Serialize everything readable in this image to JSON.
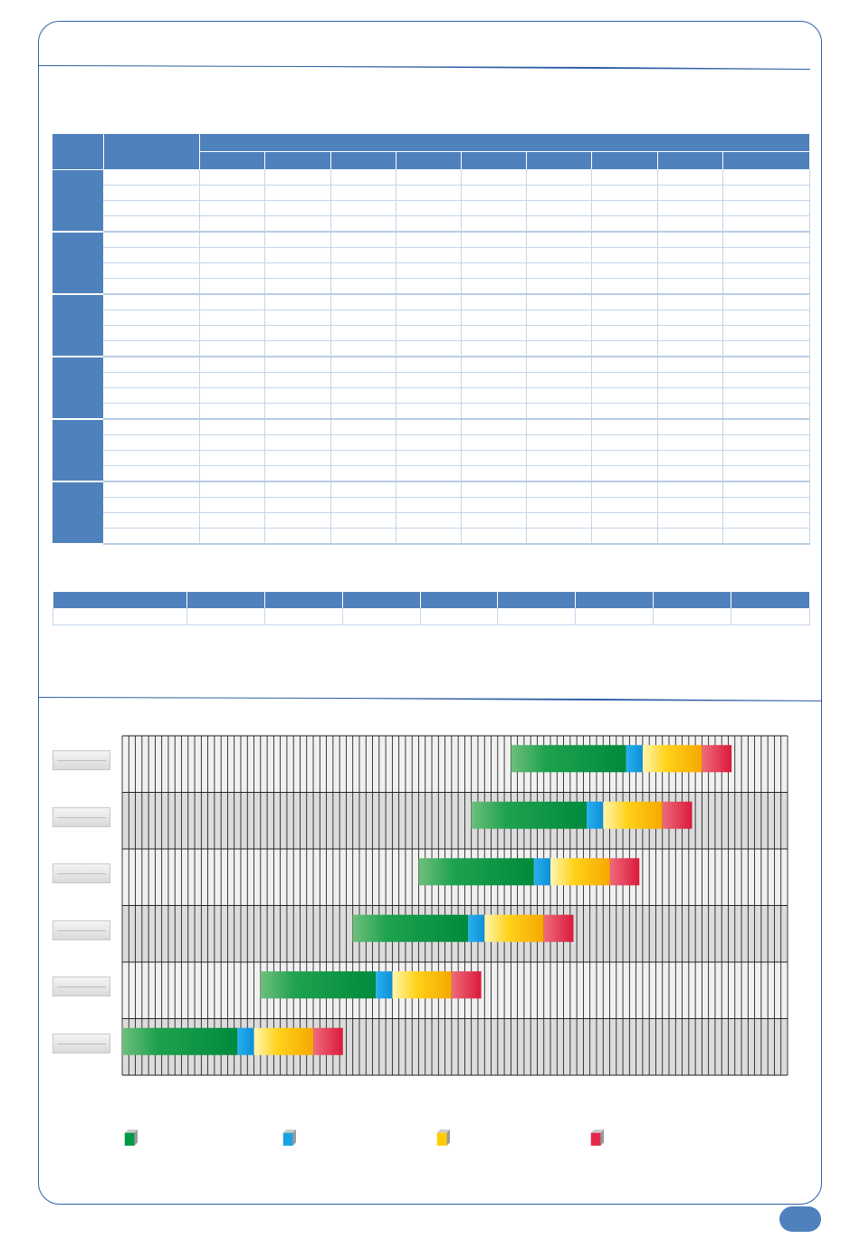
{
  "header": {
    "title": ""
  },
  "main_table": {
    "col_headers_top": [
      "",
      "",
      ""
    ],
    "col_headers_sub": [
      "",
      "",
      "",
      "",
      "",
      "",
      "",
      "",
      ""
    ],
    "groups": [
      {
        "label": "",
        "rows": 4
      },
      {
        "label": "",
        "rows": 4
      },
      {
        "label": "",
        "rows": 4
      },
      {
        "label": "",
        "rows": 4
      },
      {
        "label": "",
        "rows": 4
      },
      {
        "label": "",
        "rows": 4
      }
    ]
  },
  "summary_table": {
    "headers": [
      "",
      "",
      "",
      "",
      "",
      "",
      "",
      "",
      ""
    ],
    "row": [
      "",
      "",
      "",
      "",
      "",
      "",
      "",
      "",
      ""
    ]
  },
  "chart_data": {
    "type": "bar",
    "orientation": "horizontal-stacked",
    "categories": [
      "",
      "",
      "",
      "",
      "",
      ""
    ],
    "segment_colors": [
      "#009a44",
      "#1aa3e0",
      "#ffcc00",
      "#e3284b"
    ],
    "rows": [
      {
        "start": 59,
        "segments": [
          17.5,
          2.5,
          9,
          4.5
        ]
      },
      {
        "start": 53,
        "segments": [
          17.5,
          2.5,
          9,
          4.5
        ]
      },
      {
        "start": 45,
        "segments": [
          17.5,
          2.5,
          9,
          4.5
        ]
      },
      {
        "start": 35,
        "segments": [
          17.5,
          2.5,
          9,
          4.5
        ]
      },
      {
        "start": 21,
        "segments": [
          17.5,
          2.5,
          9,
          4.5
        ]
      },
      {
        "start": 0,
        "segments": [
          17.5,
          2.5,
          9,
          4.5
        ]
      }
    ],
    "xlim": [
      0,
      101
    ],
    "grid": true,
    "legend": [
      {
        "name": "",
        "color": "#009a44"
      },
      {
        "name": "",
        "color": "#1aa3e0"
      },
      {
        "name": "",
        "color": "#ffcc00"
      },
      {
        "name": "",
        "color": "#e3284b"
      }
    ]
  },
  "page": {
    "number": ""
  }
}
